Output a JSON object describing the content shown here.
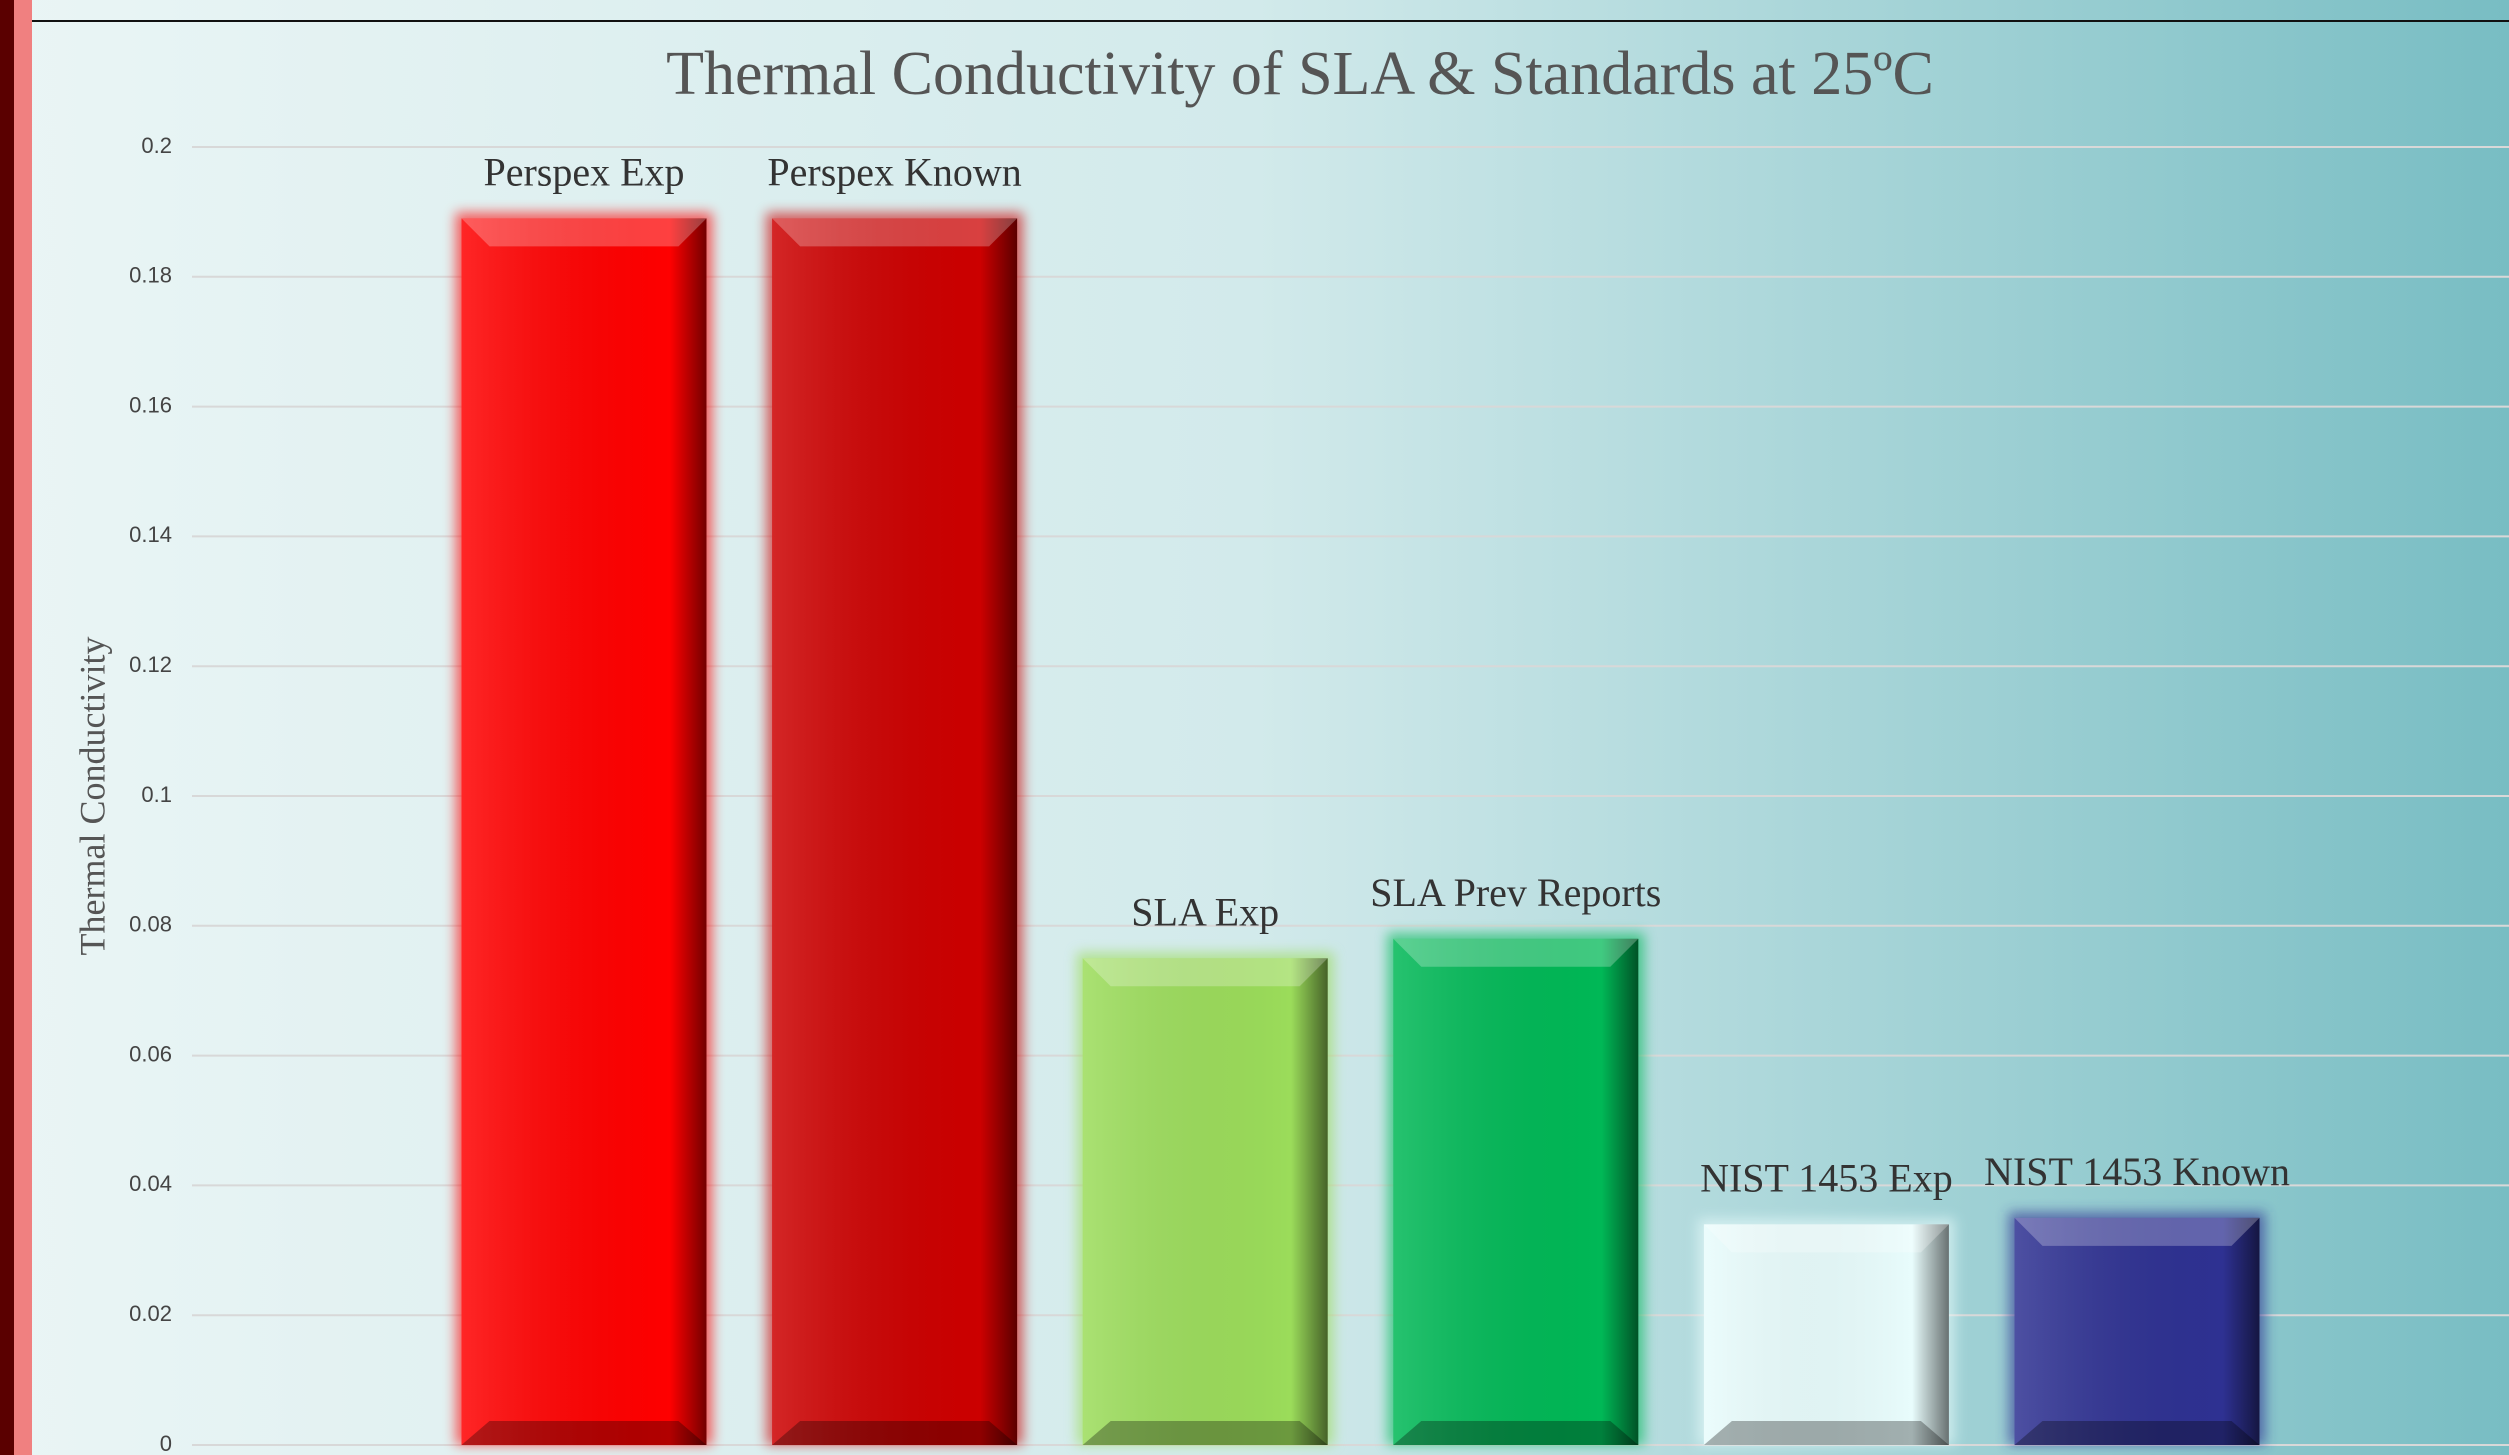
{
  "chart_data": {
    "type": "bar",
    "title": "Thermal Conductivity of SLA & Standards at 25ºC",
    "y_label": "Thermal Conductivity",
    "categories": [
      "Perspex Exp",
      "Perspex Known",
      "SLA Exp",
      "SLA Prev Reports",
      "NIST 1453 Exp",
      "NIST 1453 Known"
    ],
    "values": [
      0.189,
      0.189,
      0.075,
      0.078,
      0.034,
      0.035
    ],
    "colors": [
      "#ff0000",
      "#cc0000",
      "#9bdc5a",
      "#00b856",
      "#e8fcfc",
      "#2e3192"
    ],
    "ylim": [
      0,
      0.2
    ],
    "yticks": [
      0,
      0.02,
      0.04,
      0.06,
      0.08,
      0.1,
      0.12,
      0.14,
      0.16,
      0.18,
      0.2
    ],
    "grid": true
  }
}
